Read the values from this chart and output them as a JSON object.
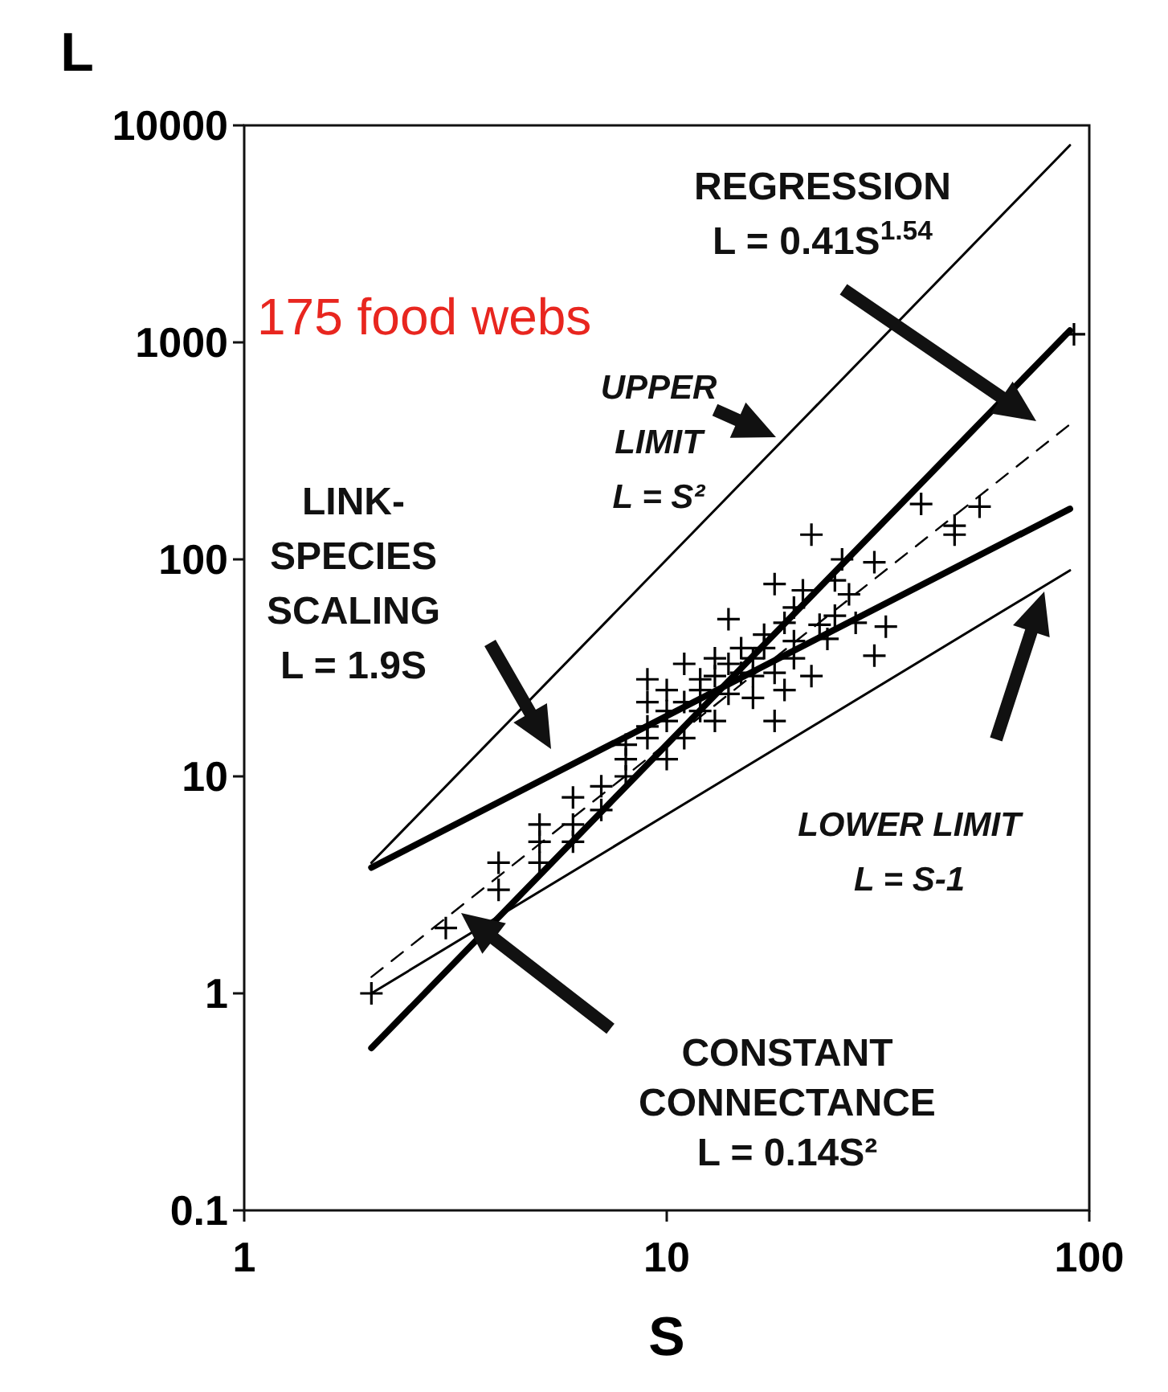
{
  "chart_data": {
    "type": "scatter",
    "xlabel": "S",
    "ylabel": "L",
    "log": "xy",
    "xlim": [
      1,
      100
    ],
    "ylim": [
      0.1,
      10000
    ],
    "xticks": [
      1,
      10,
      100
    ],
    "yticks": [
      0.1,
      1,
      10,
      100,
      1000,
      10000
    ],
    "marker": "cross",
    "annotations": [
      "175 food webs",
      "REGRESSION\nL = 0.41S$^{1.54}$",
      "UPPER\nLIMIT\nL = S²",
      "LINK-\nSPECIES\nSCALING\nL = 1.9S",
      "LOWER LIMIT\nL = S-1",
      "CONSTANT\nCONNECTANCE\nL = 0.14S²"
    ],
    "series": [
      {
        "color": "#000000",
        "x": [
          2,
          3,
          4,
          4,
          5,
          5,
          5,
          6,
          6,
          6,
          7,
          7,
          8,
          8,
          8,
          9,
          9,
          9,
          10,
          10,
          10,
          11,
          11,
          12,
          12,
          13,
          13,
          13,
          14,
          15,
          15,
          16,
          16,
          17,
          17,
          18,
          18,
          19,
          19,
          20,
          20,
          21,
          22,
          22,
          24,
          25,
          25,
          26,
          27,
          28,
          31,
          31,
          33,
          40,
          48,
          48,
          55,
          92,
          11,
          12,
          14,
          14,
          16,
          18,
          20,
          23,
          10,
          9
        ],
        "values": [
          1,
          2,
          3,
          4,
          4,
          5,
          6,
          5,
          6,
          8,
          7,
          9,
          10,
          12,
          14,
          15,
          22,
          28,
          12,
          18,
          25,
          15,
          33,
          20,
          25,
          18,
          29,
          35,
          53,
          30,
          39,
          23,
          29,
          39,
          45,
          18,
          77,
          25,
          51,
          35,
          60,
          72,
          29,
          130,
          43,
          55,
          80,
          100,
          69,
          51,
          36,
          97,
          49,
          180,
          143,
          130,
          175,
          1090,
          22,
          28,
          24,
          33,
          35,
          30,
          42,
          50,
          20,
          17
        ]
      },
      {
        "type": "line",
        "color": "#000000",
        "x": [
          2,
          90
        ],
        "values": [
          4,
          8100
        ],
        "marker": "none"
      },
      {
        "type": "line",
        "color": "#000000",
        "x": [
          2,
          90
        ],
        "values": [
          1,
          89
        ],
        "marker": "none"
      },
      {
        "type": "line",
        "color": "#000000",
        "x": [
          2,
          90
        ],
        "values": [
          3.8,
          171
        ],
        "marker": "none"
      },
      {
        "type": "line",
        "color": "#000000",
        "x": [
          2,
          90
        ],
        "values": [
          0.56,
          1134
        ],
        "marker": "none"
      },
      {
        "type": "line",
        "color": "#000000",
        "x": [
          2,
          90
        ],
        "values": [
          1.19,
          419
        ],
        "marker": "none",
        "line_style": "dashed"
      }
    ]
  }
}
